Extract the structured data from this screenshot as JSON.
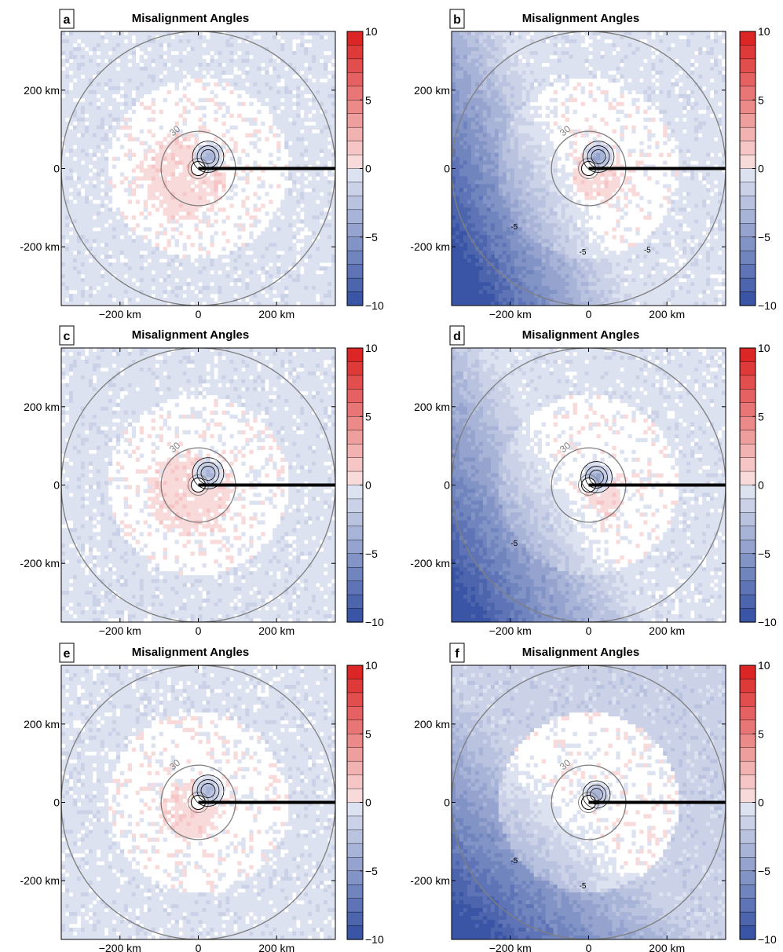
{
  "figure": {
    "colorbar": {
      "min": -10,
      "max": 10,
      "step": 1,
      "ticks": [
        10,
        5,
        0,
        -5,
        -10
      ],
      "colors": {
        "negative_end": "#3a55a5",
        "zero": "#ffffff",
        "positive_end": "#dc2626"
      }
    },
    "line_colors": {
      "contour": "#000000",
      "circle": "#7f7f7f",
      "radial_line": "#000000"
    }
  },
  "chart_data": [
    {
      "type": "heatmap",
      "panel_label": "a",
      "title": "Misalignment Angles",
      "x_ticks": [
        "−200 km",
        "0",
        "200 km"
      ],
      "x_tick_values": [
        -200,
        0,
        200
      ],
      "y_ticks": [
        "200 km",
        "0",
        "-200 km"
      ],
      "y_tick_values": [
        200,
        0,
        -200
      ],
      "xlim": [
        -350,
        350
      ],
      "ylim": [
        -350,
        350
      ],
      "circle_label": "30",
      "circle_radii": [
        95,
        350
      ],
      "colorbar_ticks": [
        "10",
        "5",
        "0",
        "−5",
        "−10"
      ],
      "far_field_value": -1,
      "regional_gradient": {
        "direction_deg": 0,
        "strength": 0
      },
      "positive_lobe": {
        "center": [
          -40,
          -20
        ],
        "radius": 100,
        "value": 1
      },
      "negative_core": {
        "center": [
          25,
          30
        ],
        "radius": 40,
        "value": -4
      }
    },
    {
      "type": "heatmap",
      "panel_label": "b",
      "title": "Misalignment Angles",
      "x_ticks": [
        "−200 km",
        "0",
        "200 km"
      ],
      "x_tick_values": [
        -200,
        0,
        200
      ],
      "y_ticks": [
        "200 km",
        "0",
        "-200 km"
      ],
      "y_tick_values": [
        200,
        0,
        -200
      ],
      "xlim": [
        -350,
        350
      ],
      "ylim": [
        -350,
        350
      ],
      "circle_label": "30",
      "circle_radii": [
        95,
        350
      ],
      "colorbar_ticks": [
        "10",
        "5",
        "0",
        "−5",
        "−10"
      ],
      "contour_labels": [
        "-5",
        "-5",
        "-5"
      ],
      "far_field_value": -1,
      "regional_gradient": {
        "direction_deg": 205,
        "strength": 9
      },
      "positive_lobe": {
        "center": [
          20,
          -20
        ],
        "radius": 60,
        "value": 1
      },
      "negative_core": {
        "center": [
          25,
          30
        ],
        "radius": 40,
        "value": -5
      }
    },
    {
      "type": "heatmap",
      "panel_label": "c",
      "title": "Misalignment Angles",
      "x_ticks": [
        "−200 km",
        "0",
        "200 km"
      ],
      "x_tick_values": [
        -200,
        0,
        200
      ],
      "y_ticks": [
        "200 km",
        "0",
        "-200 km"
      ],
      "y_tick_values": [
        200,
        0,
        -200
      ],
      "xlim": [
        -350,
        350
      ],
      "ylim": [
        -350,
        350
      ],
      "circle_label": "30",
      "circle_radii": [
        95,
        350
      ],
      "colorbar_ticks": [
        "10",
        "5",
        "0",
        "−5",
        "−10"
      ],
      "far_field_value": -1,
      "regional_gradient": {
        "direction_deg": 0,
        "strength": 0
      },
      "positive_lobe": {
        "center": [
          -20,
          -20
        ],
        "radius": 100,
        "value": 1
      },
      "negative_core": {
        "center": [
          25,
          30
        ],
        "radius": 40,
        "value": -4
      }
    },
    {
      "type": "heatmap",
      "panel_label": "d",
      "title": "Misalignment Angles",
      "x_ticks": [
        "−200 km",
        "0",
        "200 km"
      ],
      "x_tick_values": [
        -200,
        0,
        200
      ],
      "y_ticks": [
        "200 km",
        "0",
        "-200 km"
      ],
      "y_tick_values": [
        200,
        0,
        -200
      ],
      "xlim": [
        -350,
        350
      ],
      "ylim": [
        -350,
        350
      ],
      "circle_label": "30",
      "circle_radii": [
        95,
        350
      ],
      "colorbar_ticks": [
        "10",
        "5",
        "0",
        "−5",
        "−10"
      ],
      "contour_labels": [
        "-5"
      ],
      "far_field_value": -1,
      "regional_gradient": {
        "direction_deg": 210,
        "strength": 8
      },
      "positive_lobe": {
        "center": [
          40,
          -30
        ],
        "radius": 45,
        "value": 1
      },
      "negative_core": {
        "center": [
          20,
          20
        ],
        "radius": 40,
        "value": -5
      }
    },
    {
      "type": "heatmap",
      "panel_label": "e",
      "title": "Misalignment Angles",
      "x_ticks": [
        "−200 km",
        "0",
        "200 km"
      ],
      "x_tick_values": [
        -200,
        0,
        200
      ],
      "y_ticks": [
        "200 km",
        "0",
        "-200 km"
      ],
      "y_tick_values": [
        200,
        0,
        -200
      ],
      "xlim": [
        -350,
        350
      ],
      "ylim": [
        -350,
        350
      ],
      "circle_label": "30",
      "circle_radii": [
        95,
        350
      ],
      "colorbar_ticks": [
        "10",
        "5",
        "0",
        "−5",
        "−10"
      ],
      "far_field_value": -1,
      "regional_gradient": {
        "direction_deg": 0,
        "strength": 0
      },
      "positive_lobe": {
        "center": [
          -20,
          -20
        ],
        "radius": 70,
        "value": 1
      },
      "negative_core": {
        "center": [
          25,
          30
        ],
        "radius": 40,
        "value": -4
      }
    },
    {
      "type": "heatmap",
      "panel_label": "f",
      "title": "Misalignment Angles",
      "x_ticks": [
        "−200 km",
        "0",
        "200 km"
      ],
      "x_tick_values": [
        -200,
        0,
        200
      ],
      "y_ticks": [
        "200 km",
        "0",
        "-200 km"
      ],
      "y_tick_values": [
        200,
        0,
        -200
      ],
      "xlim": [
        -350,
        350
      ],
      "ylim": [
        -350,
        350
      ],
      "circle_label": "30",
      "circle_radii": [
        95,
        350
      ],
      "colorbar_ticks": [
        "10",
        "5",
        "0",
        "−5",
        "−10"
      ],
      "contour_labels": [
        "-5",
        "-5"
      ],
      "far_field_value": -2,
      "regional_gradient": {
        "direction_deg": 225,
        "strength": 7
      },
      "positive_lobe": {
        "center": [
          20,
          -30
        ],
        "radius": 50,
        "value": 0
      },
      "negative_core": {
        "center": [
          20,
          20
        ],
        "radius": 35,
        "value": -4
      }
    }
  ]
}
